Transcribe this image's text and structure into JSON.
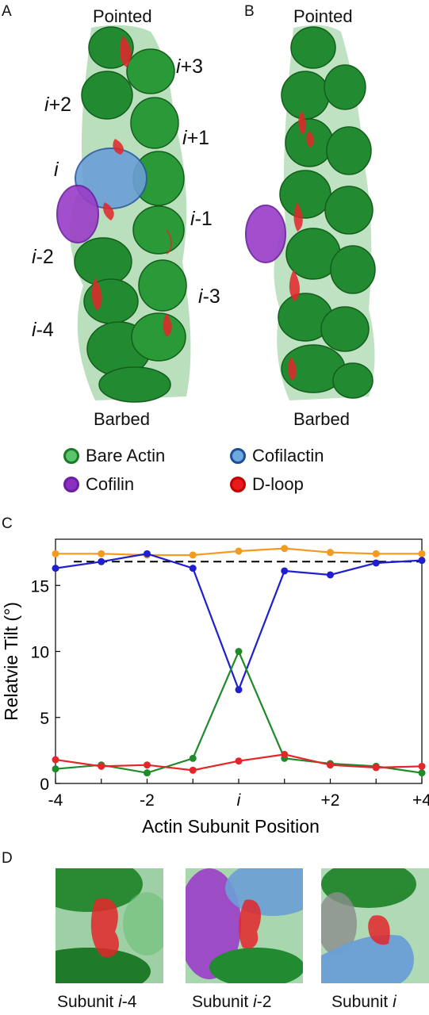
{
  "panels": {
    "a_letter": "A",
    "b_letter": "B",
    "c_letter": "C",
    "d_letter": "D"
  },
  "panel_a": {
    "top_label": "Pointed",
    "bottom_label": "Barbed",
    "subunits": [
      {
        "italic": "i",
        "suffix": "+3"
      },
      {
        "italic": "i",
        "suffix": "+2"
      },
      {
        "italic": "i",
        "suffix": "+1"
      },
      {
        "italic": "i",
        "suffix": ""
      },
      {
        "italic": "i",
        "suffix": "-1"
      },
      {
        "italic": "i",
        "suffix": "-2"
      },
      {
        "italic": "i",
        "suffix": "-3"
      },
      {
        "italic": "i",
        "suffix": "-4"
      }
    ]
  },
  "panel_b": {
    "top_label": "Pointed",
    "bottom_label": "Barbed"
  },
  "legend": {
    "items": [
      {
        "label": "Bare Actin",
        "fill": "#3fae4a",
        "border": "#1a7a26"
      },
      {
        "label": "Cofilactin",
        "fill": "#6fa8dc",
        "border": "#1f4e9a"
      },
      {
        "label": "Cofilin",
        "fill": "#8a2fc0",
        "border": "#6a1fa0"
      },
      {
        "label": "D-loop",
        "fill": "#e51a1a",
        "border": "#c00000"
      }
    ]
  },
  "colors": {
    "actin": "#2f8f3a",
    "actin_dark": "#1c6a25",
    "cofilactin": "#6b9fd6",
    "cofilin": "#9a3dc8",
    "dloop": "#e3262a"
  },
  "chart_data": {
    "type": "line",
    "title": "",
    "xlabel": "Actin Subunit Position",
    "ylabel": "Relatvie Tilt (°)",
    "x": [
      -4,
      -3,
      -2,
      -1,
      0,
      1,
      2,
      3,
      4
    ],
    "x_tick_labels": [
      {
        "x": -4,
        "italic": "",
        "text": "-4"
      },
      {
        "x": -2,
        "italic": "",
        "text": "-2"
      },
      {
        "x": 0,
        "italic": "i",
        "text": ""
      },
      {
        "x": 2,
        "italic": "",
        "text": "+2"
      },
      {
        "x": 4,
        "italic": "",
        "text": "+4"
      }
    ],
    "y_ticks": [
      0,
      5,
      10,
      15
    ],
    "xlim": [
      -4,
      4
    ],
    "ylim": [
      0,
      18.5
    ],
    "reference_line": {
      "y": 16.8,
      "style": "dashed",
      "color": "#000000"
    },
    "series": [
      {
        "color": "#f39a1f",
        "values": [
          17.4,
          17.4,
          17.3,
          17.3,
          17.6,
          17.8,
          17.5,
          17.4,
          17.4
        ]
      },
      {
        "color": "#1f1fcf",
        "values": [
          16.3,
          16.8,
          17.4,
          16.3,
          7.1,
          16.1,
          15.8,
          16.7,
          16.9
        ]
      },
      {
        "color": "#1f8a2a",
        "values": [
          1.1,
          1.4,
          0.8,
          1.9,
          10.0,
          1.9,
          1.5,
          1.3,
          0.8
        ]
      },
      {
        "color": "#e3262a",
        "values": [
          1.8,
          1.3,
          1.4,
          1.0,
          1.7,
          2.2,
          1.4,
          1.2,
          1.3
        ]
      }
    ],
    "grid": false,
    "legend": "none"
  },
  "panel_d": {
    "captions": [
      {
        "prefix": "Subunit ",
        "italic": "i",
        "suffix": "-4"
      },
      {
        "prefix": "Subunit ",
        "italic": "i",
        "suffix": "-2"
      },
      {
        "prefix": "Subunit ",
        "italic": "i",
        "suffix": ""
      }
    ]
  }
}
